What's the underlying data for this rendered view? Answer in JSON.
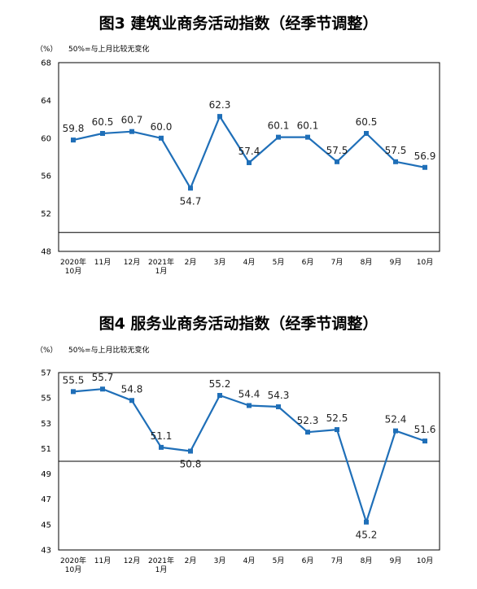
{
  "chart_data": [
    {
      "type": "line",
      "title": "图3  建筑业商务活动指数（经季节调整）",
      "unit": "（%）",
      "note": "50%=与上月比较无变化",
      "categories": [
        "2020年\n10月",
        "11月",
        "12月",
        "2021年\n1月",
        "2月",
        "3月",
        "4月",
        "5月",
        "6月",
        "7月",
        "8月",
        "9月",
        "10月"
      ],
      "values": [
        59.8,
        60.5,
        60.7,
        60.0,
        54.7,
        62.3,
        57.4,
        60.1,
        60.1,
        57.5,
        60.5,
        57.5,
        56.9
      ],
      "data_labels": [
        "59.8",
        "60.5",
        "60.7",
        "60.0",
        "54.7",
        "62.3",
        "57.4",
        "60.1",
        "60.1",
        "57.5",
        "60.5",
        "57.5",
        "56.9"
      ],
      "label_pos": [
        "above",
        "above",
        "above",
        "above",
        "below",
        "above",
        "above",
        "above",
        "above",
        "above",
        "above",
        "above",
        "above"
      ],
      "ylim": [
        48,
        68
      ],
      "yticks": [
        "48",
        "52",
        "56",
        "60",
        "64",
        "68"
      ],
      "reference_line": 50,
      "color": "#1f6fb8"
    },
    {
      "type": "line",
      "title": "图4  服务业商务活动指数（经季节调整）",
      "unit": "（%）",
      "note": "50%=与上月比较无变化",
      "categories": [
        "2020年\n10月",
        "11月",
        "12月",
        "2021年\n1月",
        "2月",
        "3月",
        "4月",
        "5月",
        "6月",
        "7月",
        "8月",
        "9月",
        "10月"
      ],
      "values": [
        55.5,
        55.7,
        54.8,
        51.1,
        50.8,
        55.2,
        54.4,
        54.3,
        52.3,
        52.5,
        45.2,
        52.4,
        51.6
      ],
      "data_labels": [
        "55.5",
        "55.7",
        "54.8",
        "51.1",
        "50.8",
        "55.2",
        "54.4",
        "54.3",
        "52.3",
        "52.5",
        "45.2",
        "52.4",
        "51.6"
      ],
      "label_pos": [
        "above",
        "above",
        "above",
        "above",
        "below",
        "above",
        "above",
        "above",
        "above",
        "above",
        "below",
        "above",
        "above"
      ],
      "ylim": [
        43,
        57
      ],
      "yticks": [
        "43",
        "45",
        "47",
        "49",
        "51",
        "53",
        "55",
        "57"
      ],
      "reference_line": 50,
      "color": "#1f6fb8"
    }
  ]
}
